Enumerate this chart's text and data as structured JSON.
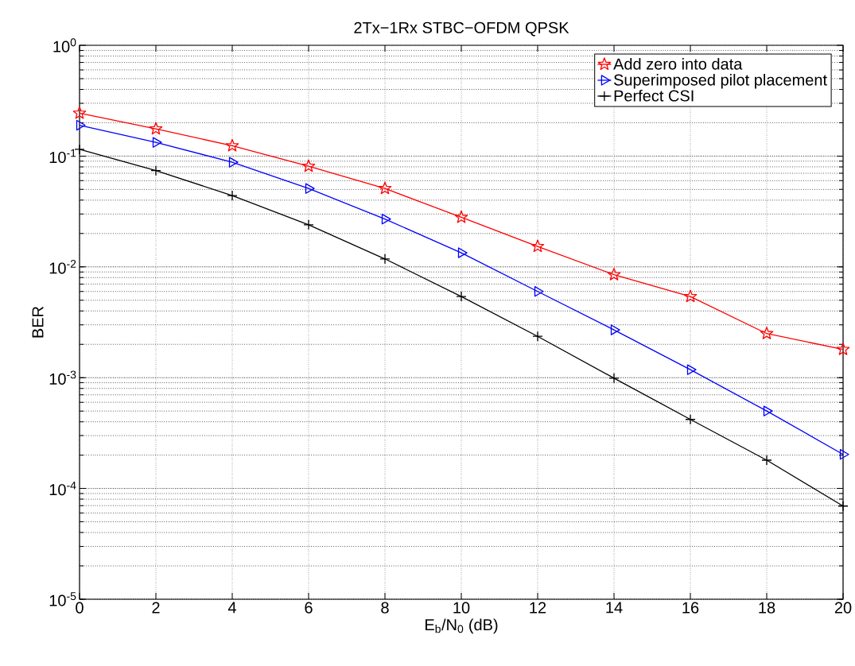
{
  "chart_data": {
    "type": "line",
    "title": "2Tx−1Rx STBC−OFDM QPSK",
    "xlabel": "E$_{b}$/N$_{0}$ (dB)",
    "ylabel": "BER",
    "x": [
      0,
      2,
      4,
      6,
      8,
      10,
      12,
      14,
      16,
      18,
      20
    ],
    "series": [
      {
        "name": "Add zero into data",
        "color": "#ff0000",
        "marker": "star",
        "values": [
          0.244,
          0.176,
          0.124,
          0.081,
          0.051,
          0.028,
          0.0153,
          0.0085,
          0.0054,
          0.0025,
          0.0018
        ]
      },
      {
        "name": "Superimposed pilot placement",
        "color": "#0000ff",
        "marker": "triangle",
        "values": [
          0.19,
          0.133,
          0.088,
          0.051,
          0.027,
          0.0134,
          0.006,
          0.0027,
          0.00118,
          0.0005,
          0.000203
        ]
      },
      {
        "name": "Perfect CSI",
        "color": "#000000",
        "marker": "cross",
        "values": [
          0.115,
          0.074,
          0.044,
          0.024,
          0.0118,
          0.0054,
          0.00236,
          0.00099,
          0.00042,
          0.00018,
          6.94e-05
        ]
      }
    ],
    "xlim": [
      0,
      20
    ],
    "xticks": [
      0,
      2,
      4,
      6,
      8,
      10,
      12,
      14,
      16,
      18,
      20
    ],
    "ylim": [
      1e-05,
      1
    ],
    "yticks": [
      {
        "value": 1e-05,
        "label": "10$^{-5}$"
      },
      {
        "value": 0.0001,
        "label": "10$^{-4}$"
      },
      {
        "value": 0.001,
        "label": "10$^{-3}$"
      },
      {
        "value": 0.01,
        "label": "10$^{-2}$"
      },
      {
        "value": 0.1,
        "label": "10$^{-1}$"
      },
      {
        "value": 1,
        "label": "10$^{0}$"
      }
    ],
    "log": "y",
    "grid": true,
    "legend": "top right",
    "line_style": "solid"
  }
}
